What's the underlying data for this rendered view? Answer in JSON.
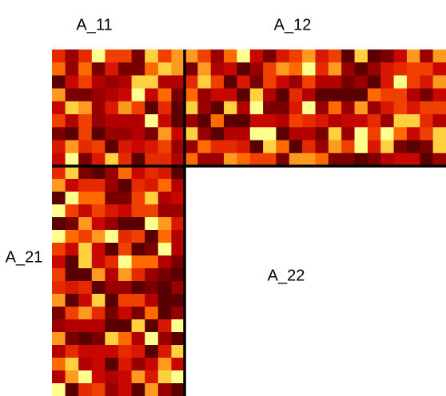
{
  "blocks": {
    "a11": {
      "label": "A_11"
    },
    "a12": {
      "label": "A_12"
    },
    "a21": {
      "label": "A_21"
    },
    "a22": {
      "label": "A_22"
    }
  }
}
